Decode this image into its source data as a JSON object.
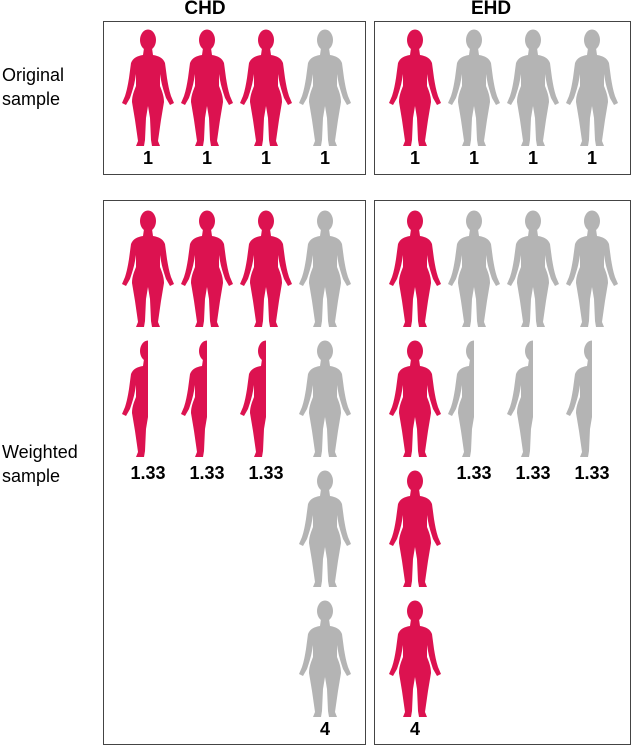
{
  "columns": [
    "CHD",
    "EHD"
  ],
  "rows": {
    "original": "Original\nsample",
    "weighted": "Weighted\nsample"
  },
  "colors": {
    "highlight": "#dc1250",
    "muted": "#b4b4b4",
    "border": "#444444"
  },
  "figure_icon": "human-silhouette-icon",
  "panels": {
    "chd_original": {
      "figures": [
        "highlight",
        "highlight",
        "highlight",
        "muted"
      ],
      "weights": [
        "1",
        "1",
        "1",
        "1"
      ]
    },
    "ehd_original": {
      "figures": [
        "highlight",
        "muted",
        "muted",
        "muted"
      ],
      "weights": [
        "1",
        "1",
        "1",
        "1"
      ]
    },
    "chd_weighted": {
      "weights": [
        "1.33",
        "1.33",
        "1.33",
        "4"
      ]
    },
    "ehd_weighted": {
      "weights": [
        "4",
        "1.33",
        "1.33",
        "1.33"
      ]
    }
  }
}
